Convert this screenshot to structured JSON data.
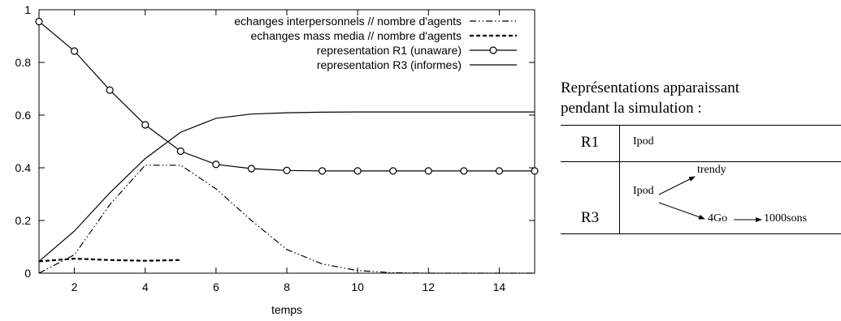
{
  "chart_data": {
    "type": "line",
    "xlabel": "temps",
    "ylabel": "",
    "title": "",
    "xlim": [
      1,
      15
    ],
    "ylim": [
      0,
      1
    ],
    "x_ticks": [
      2,
      4,
      6,
      8,
      10,
      12,
      14
    ],
    "y_ticks": [
      0,
      0.2,
      0.4,
      0.6,
      0.8,
      1
    ],
    "y_tick_labels": [
      "0",
      "0.2",
      "0.4",
      "0.6",
      "0.8",
      "1"
    ],
    "grid": false,
    "legend_position": "top-right",
    "series": [
      {
        "name": "echanges interpersonnels // nombre d'agents",
        "style": "dash-dot-dot",
        "x": [
          1,
          2,
          3,
          4,
          5,
          6,
          7,
          8,
          9,
          10,
          11,
          12,
          13,
          14,
          15
        ],
        "y": [
          0.0,
          0.07,
          0.26,
          0.41,
          0.41,
          0.32,
          0.2,
          0.09,
          0.035,
          0.01,
          0.002,
          0.0,
          0.0,
          0.0,
          0.0
        ]
      },
      {
        "name": "echanges mass media // nombre d'agents",
        "style": "dashed",
        "x": [
          1,
          2,
          3,
          4,
          5
        ],
        "y": [
          0.045,
          0.055,
          0.05,
          0.047,
          0.05
        ]
      },
      {
        "name": "representation R1 (unaware)",
        "style": "solid-circle",
        "x": [
          1,
          2,
          3,
          4,
          5,
          6,
          7,
          8,
          9,
          10,
          11,
          12,
          13,
          14,
          15
        ],
        "y": [
          0.955,
          0.843,
          0.695,
          0.563,
          0.463,
          0.413,
          0.397,
          0.39,
          0.388,
          0.388,
          0.388,
          0.388,
          0.388,
          0.388,
          0.388
        ]
      },
      {
        "name": "representation R3 (informes)",
        "style": "solid",
        "x": [
          1,
          2,
          3,
          4,
          5,
          6,
          7,
          8,
          9,
          10,
          11,
          12,
          13,
          14,
          15
        ],
        "y": [
          0.045,
          0.16,
          0.305,
          0.435,
          0.535,
          0.588,
          0.604,
          0.609,
          0.611,
          0.612,
          0.612,
          0.612,
          0.612,
          0.612,
          0.612
        ]
      }
    ]
  },
  "side_panel": {
    "caption_line1": "Représentations apparaissant",
    "caption_line2": "pendant la simulation :",
    "rows": [
      {
        "id": "R1",
        "root": "Ipod"
      },
      {
        "id": "R3",
        "root": "Ipod",
        "child_a": "trendy",
        "child_b": "4Go",
        "grandchild": "1000sons"
      }
    ]
  }
}
